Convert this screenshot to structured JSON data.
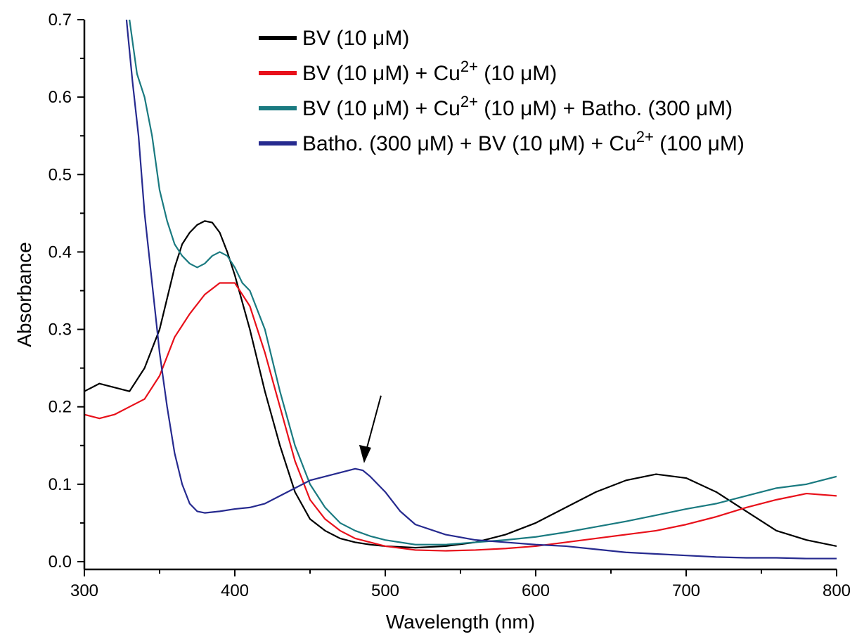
{
  "chart_data": {
    "type": "line",
    "title": "",
    "xlabel": "Wavelength (nm)",
    "ylabel": "Absorbance",
    "xlim": [
      300,
      800
    ],
    "ylim": [
      -0.01,
      0.7
    ],
    "xticks": [
      300,
      400,
      500,
      600,
      700,
      800
    ],
    "yticks": [
      0.0,
      0.1,
      0.2,
      0.3,
      0.4,
      0.5,
      0.6,
      0.7
    ],
    "xtick_labels": [
      "300",
      "400",
      "500",
      "600",
      "700",
      "800"
    ],
    "ytick_labels": [
      "0.0",
      "0.1",
      "0.2",
      "0.3",
      "0.4",
      "0.5",
      "0.6",
      "0.7"
    ],
    "grid": false,
    "legend_position": "top-right",
    "annotation": {
      "type": "arrow",
      "target_x": 485,
      "target_y": 0.12
    },
    "series": [
      {
        "name": "BV (10 μM)",
        "color": "#000000",
        "legend_runs": [
          {
            "t": "BV (10 μM)"
          }
        ],
        "x": [
          300,
          310,
          320,
          330,
          340,
          350,
          360,
          365,
          370,
          375,
          380,
          385,
          390,
          395,
          400,
          410,
          420,
          430,
          440,
          450,
          460,
          470,
          480,
          490,
          500,
          520,
          540,
          560,
          580,
          600,
          620,
          640,
          660,
          680,
          700,
          720,
          740,
          760,
          780,
          800
        ],
        "y": [
          0.22,
          0.23,
          0.225,
          0.22,
          0.25,
          0.3,
          0.38,
          0.41,
          0.425,
          0.435,
          0.44,
          0.438,
          0.425,
          0.4,
          0.37,
          0.3,
          0.22,
          0.15,
          0.09,
          0.055,
          0.04,
          0.03,
          0.025,
          0.022,
          0.02,
          0.018,
          0.02,
          0.025,
          0.035,
          0.05,
          0.07,
          0.09,
          0.105,
          0.113,
          0.108,
          0.09,
          0.065,
          0.04,
          0.028,
          0.02
        ]
      },
      {
        "name": "BV (10 μM) + Cu2+ (10 μM)",
        "color": "#e8101a",
        "legend_runs": [
          {
            "t": "BV (10 μM) + Cu"
          },
          {
            "t": "2+",
            "sup": true
          },
          {
            "t": " (10 μM)"
          }
        ],
        "x": [
          300,
          310,
          320,
          330,
          340,
          350,
          360,
          370,
          380,
          390,
          400,
          410,
          420,
          430,
          440,
          450,
          460,
          470,
          480,
          490,
          500,
          520,
          540,
          560,
          580,
          600,
          620,
          640,
          660,
          680,
          700,
          720,
          740,
          760,
          780,
          800
        ],
        "y": [
          0.19,
          0.185,
          0.19,
          0.2,
          0.21,
          0.24,
          0.29,
          0.32,
          0.345,
          0.36,
          0.36,
          0.33,
          0.27,
          0.2,
          0.13,
          0.08,
          0.055,
          0.04,
          0.03,
          0.025,
          0.02,
          0.015,
          0.014,
          0.015,
          0.017,
          0.02,
          0.025,
          0.03,
          0.035,
          0.04,
          0.048,
          0.058,
          0.07,
          0.08,
          0.088,
          0.085
        ]
      },
      {
        "name": "BV (10 μM) + Cu2+ (10 μM) + Batho. (300 μM)",
        "color": "#1a7a80",
        "legend_runs": [
          {
            "t": "BV (10 μM) + Cu"
          },
          {
            "t": "2+",
            "sup": true
          },
          {
            "t": " (10 μM) + Batho. (300 μM)"
          }
        ],
        "x": [
          330,
          335,
          340,
          345,
          350,
          355,
          360,
          365,
          370,
          375,
          380,
          385,
          390,
          395,
          400,
          405,
          410,
          420,
          430,
          440,
          450,
          460,
          470,
          480,
          490,
          500,
          520,
          540,
          560,
          580,
          600,
          620,
          640,
          660,
          680,
          700,
          720,
          740,
          760,
          780,
          800
        ],
        "y": [
          0.7,
          0.63,
          0.6,
          0.55,
          0.48,
          0.44,
          0.41,
          0.395,
          0.385,
          0.38,
          0.385,
          0.395,
          0.4,
          0.395,
          0.38,
          0.36,
          0.35,
          0.3,
          0.22,
          0.15,
          0.1,
          0.07,
          0.05,
          0.04,
          0.033,
          0.028,
          0.022,
          0.022,
          0.025,
          0.028,
          0.032,
          0.038,
          0.045,
          0.052,
          0.06,
          0.068,
          0.075,
          0.085,
          0.095,
          0.1,
          0.11
        ]
      },
      {
        "name": "Batho. (300 μM) + BV (10 μM) + Cu2+ (100 μM)",
        "color": "#262a8f",
        "legend_runs": [
          {
            "t": "Batho. (300 μM) + BV (10 μM) + Cu"
          },
          {
            "t": "2+",
            "sup": true
          },
          {
            "t": " (100 μM)"
          }
        ],
        "x": [
          328,
          332,
          336,
          340,
          345,
          350,
          355,
          360,
          365,
          370,
          375,
          380,
          390,
          400,
          410,
          420,
          430,
          440,
          450,
          460,
          470,
          480,
          485,
          490,
          500,
          510,
          520,
          540,
          560,
          580,
          600,
          620,
          640,
          660,
          680,
          700,
          720,
          740,
          760,
          780,
          800
        ],
        "y": [
          0.7,
          0.62,
          0.55,
          0.45,
          0.36,
          0.27,
          0.2,
          0.14,
          0.1,
          0.075,
          0.065,
          0.063,
          0.065,
          0.068,
          0.07,
          0.075,
          0.085,
          0.095,
          0.105,
          0.11,
          0.115,
          0.12,
          0.118,
          0.11,
          0.09,
          0.065,
          0.048,
          0.035,
          0.028,
          0.025,
          0.022,
          0.02,
          0.016,
          0.012,
          0.01,
          0.008,
          0.006,
          0.005,
          0.005,
          0.004,
          0.004
        ]
      }
    ]
  }
}
